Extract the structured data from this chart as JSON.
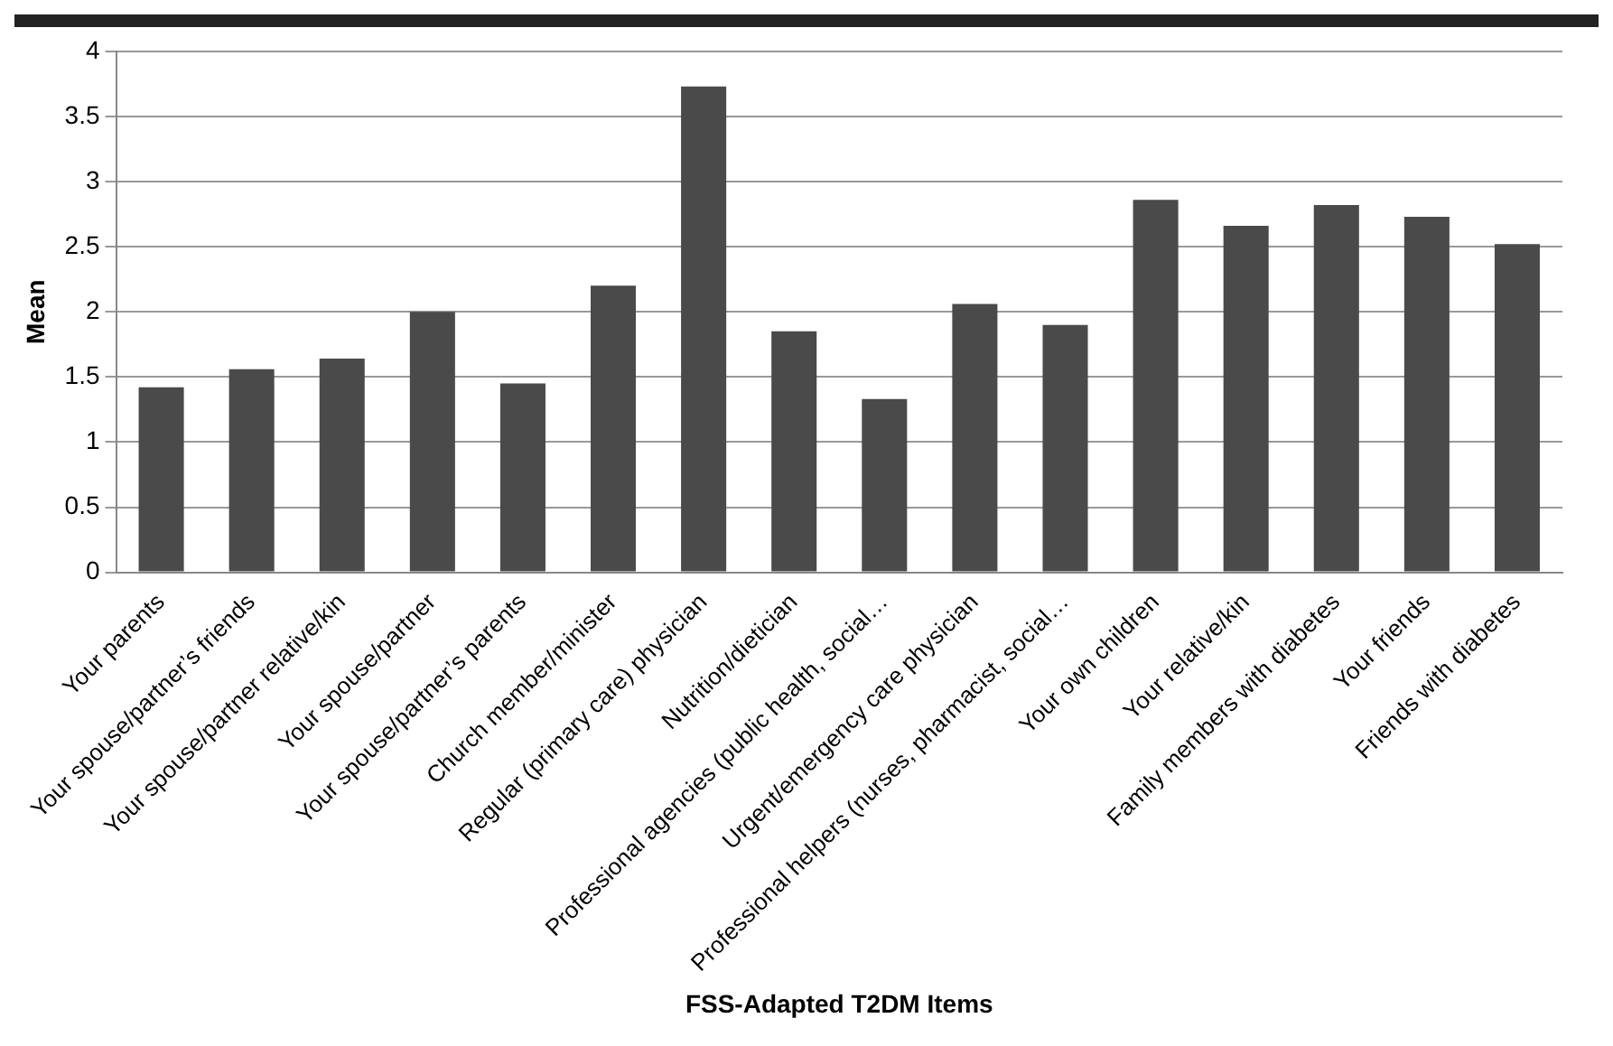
{
  "chart_data": {
    "type": "bar",
    "xlabel": "FSS-Adapted T2DM Items",
    "ylabel": "Mean",
    "categories": [
      "Your parents",
      "Your spouse/partner’s friends",
      "Your spouse/partner relative/kin",
      "Your spouse/partner",
      "Your spouse/partner’s parents",
      "Church member/minister",
      "Regular (primary care) physician",
      "Nutrition/dietician",
      "Professional agencies (public health, social…",
      "Urgent/emergency care physician",
      "Professional helpers (nurses, pharmacist, social…",
      "Your own children",
      "Your relative/kin",
      "Family members with diabetes",
      "Your friends",
      "Friends with diabetes"
    ],
    "values": [
      1.42,
      1.56,
      1.64,
      2.0,
      1.45,
      2.2,
      3.73,
      1.85,
      1.33,
      2.06,
      1.9,
      2.86,
      2.66,
      2.82,
      2.73,
      2.52
    ],
    "color": "#4a4a4a",
    "ylim": [
      0,
      4
    ],
    "yticks": [
      0,
      0.5,
      1,
      1.5,
      2,
      2.5,
      3,
      3.5,
      4
    ],
    "grid": "y",
    "legend": false
  }
}
